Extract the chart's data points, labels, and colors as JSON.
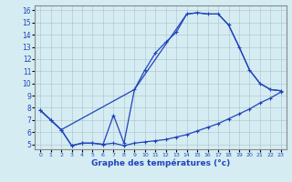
{
  "xlabel": "Graphe des températures (°c)",
  "bg_color": "#d4ecf2",
  "line_color": "#2244bb",
  "xlim": [
    -0.5,
    23.5
  ],
  "ylim": [
    4.6,
    16.4
  ],
  "xticks": [
    0,
    1,
    2,
    3,
    4,
    5,
    6,
    7,
    8,
    9,
    10,
    11,
    12,
    13,
    14,
    15,
    16,
    17,
    18,
    19,
    20,
    21,
    22,
    23
  ],
  "yticks": [
    5,
    6,
    7,
    8,
    9,
    10,
    11,
    12,
    13,
    14,
    15,
    16
  ],
  "line1_x": [
    0,
    1,
    2,
    3,
    4,
    5,
    6,
    7,
    8,
    9,
    10,
    11,
    12,
    13,
    14,
    15,
    16,
    17,
    18,
    19,
    20,
    21,
    22,
    23
  ],
  "line1_y": [
    7.8,
    7.0,
    6.2,
    4.9,
    5.1,
    5.1,
    5.0,
    5.1,
    4.9,
    5.1,
    5.2,
    5.3,
    5.4,
    5.6,
    5.8,
    6.1,
    6.4,
    6.7,
    7.1,
    7.5,
    7.9,
    8.4,
    8.8,
    9.3
  ],
  "line2_x": [
    0,
    1,
    2,
    3,
    4,
    5,
    6,
    7,
    8,
    9,
    10,
    11,
    12,
    13,
    14,
    15,
    16,
    17,
    18,
    19,
    20,
    21,
    22,
    23
  ],
  "line2_y": [
    7.8,
    7.0,
    6.2,
    4.9,
    5.1,
    5.1,
    5.0,
    7.4,
    5.1,
    9.5,
    11.1,
    12.5,
    13.4,
    14.2,
    15.7,
    15.8,
    15.7,
    15.7,
    14.8,
    13.0,
    11.1,
    10.0,
    9.5,
    9.4
  ],
  "line3_x": [
    0,
    1,
    2,
    9,
    14,
    15,
    16,
    17,
    18,
    19,
    20,
    21,
    22,
    23
  ],
  "line3_y": [
    7.8,
    7.0,
    6.2,
    9.5,
    15.7,
    15.8,
    15.7,
    15.7,
    14.8,
    13.0,
    11.1,
    10.0,
    9.5,
    9.4
  ],
  "grid_color": "#a0b8c0",
  "marker": "+"
}
